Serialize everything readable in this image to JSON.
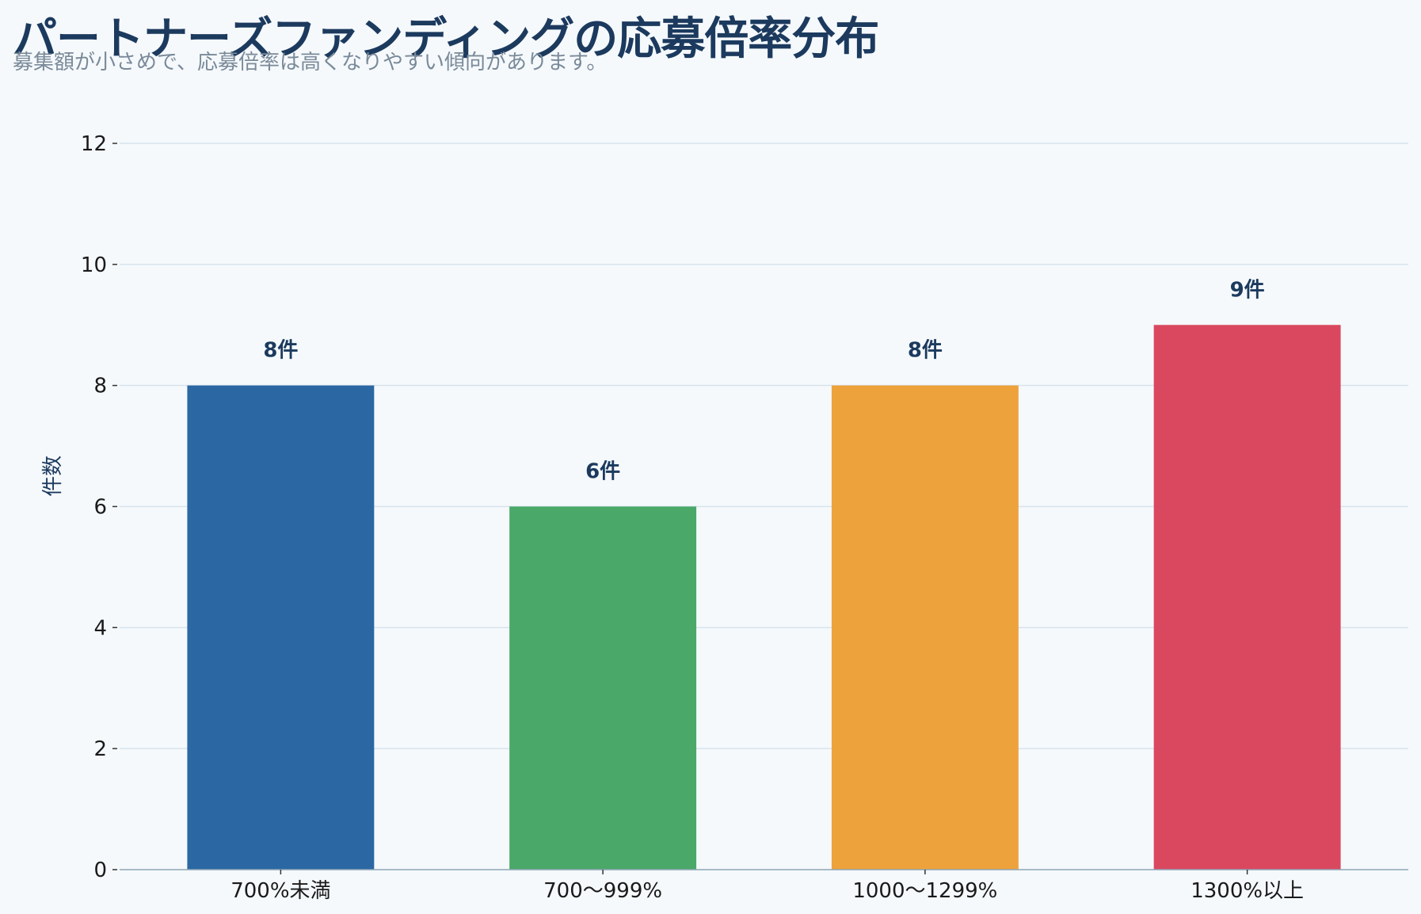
{
  "title": "パートナーズファンディングの応募倍率分布",
  "subtitle": "募集額が小さめで、応募倍率は高くなりやすい傾向があります。",
  "chart_data": {
    "type": "bar",
    "title": "パートナーズファンディングの応募倍率分布",
    "subtitle": "募集額が小さめで、応募倍率は高くなりやすい傾向があります。",
    "xlabel": "",
    "ylabel": "件数",
    "categories": [
      "700%未満",
      "700〜999%",
      "1000〜1299%",
      "1300%以上"
    ],
    "values": [
      8,
      6,
      8,
      9
    ],
    "data_labels": [
      "8件",
      "6件",
      "8件",
      "9件"
    ],
    "colors": [
      "#2b67a3",
      "#4aa868",
      "#eea23b",
      "#d9485f"
    ],
    "ylim": [
      0,
      12
    ],
    "yticks": [
      0,
      2,
      4,
      6,
      8,
      10,
      12
    ],
    "grid": true,
    "legend": "none"
  }
}
